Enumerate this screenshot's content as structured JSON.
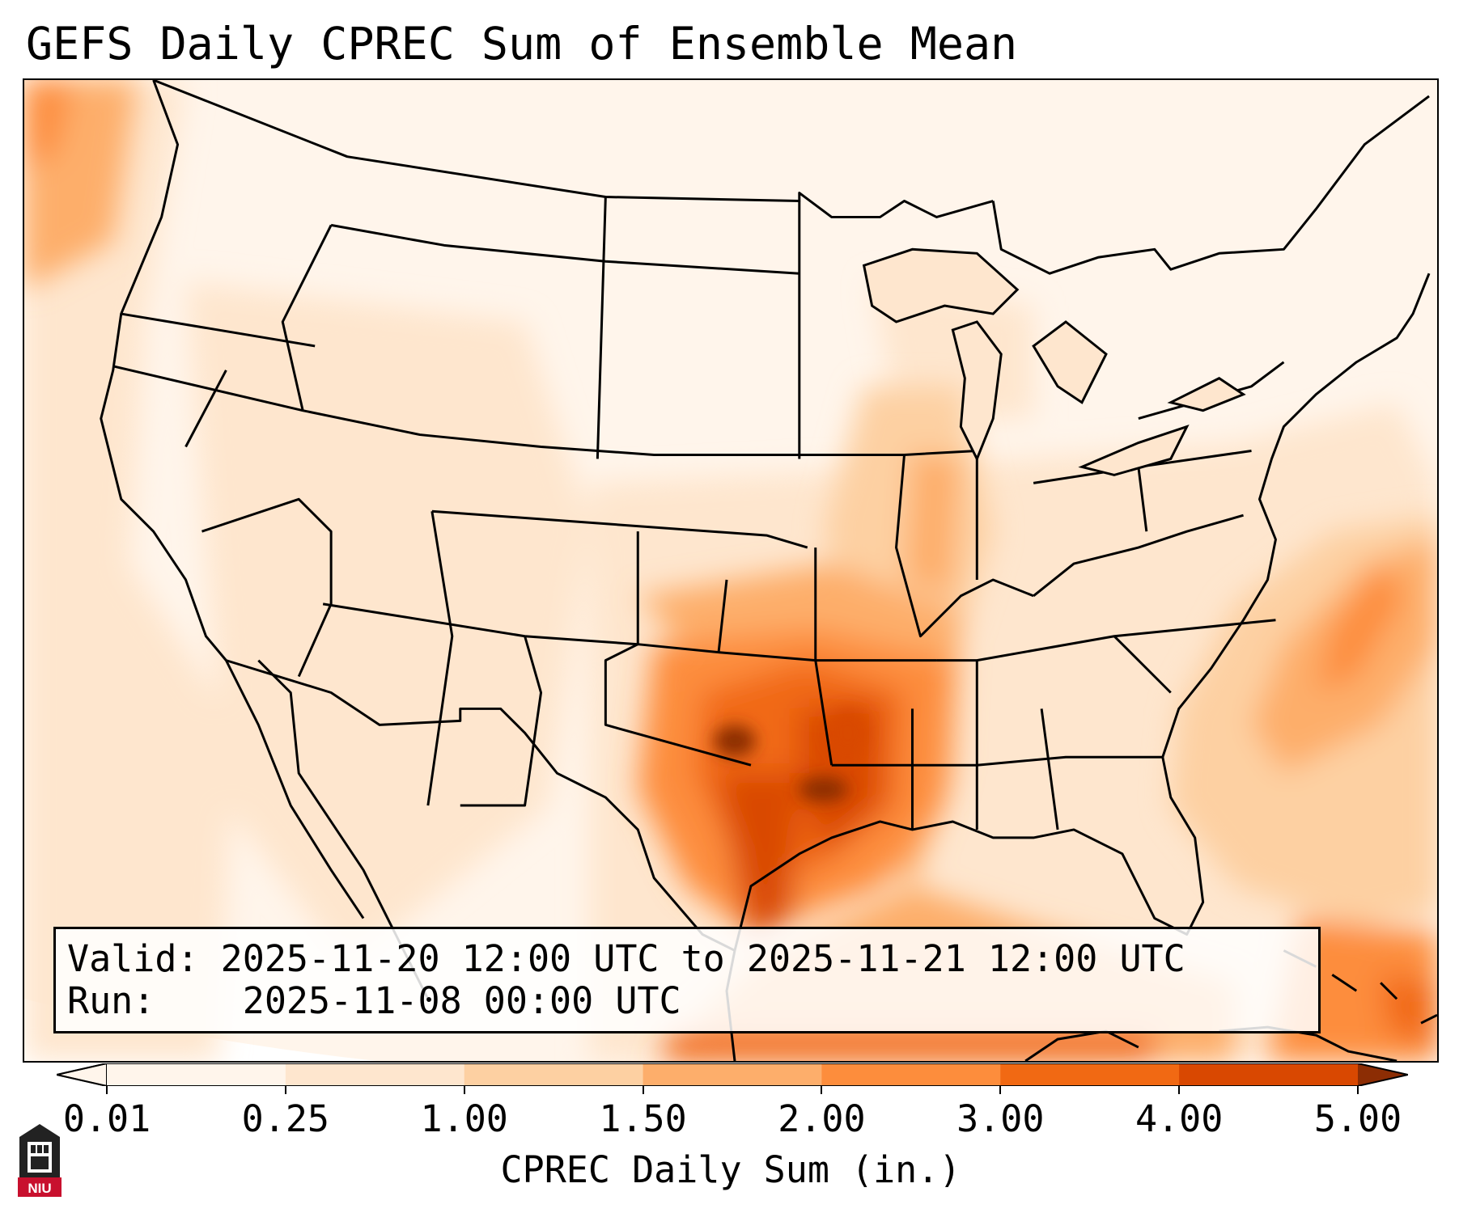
{
  "title": "GEFS Daily CPREC Sum of Ensemble Mean",
  "info": {
    "valid_label": "Valid:",
    "valid_value": "2025-11-20 12:00 UTC to 2025-11-21 12:00 UTC",
    "run_label": "Run:",
    "run_value": "2025-11-08 00:00 UTC"
  },
  "colorbar": {
    "label": "CPREC Daily Sum (in.)",
    "ticks": [
      "0.01",
      "0.25",
      "1.00",
      "1.50",
      "2.00",
      "3.00",
      "4.00",
      "5.00"
    ],
    "colors": [
      "#fff5eb",
      "#fee6ce",
      "#fdd0a2",
      "#fdae6b",
      "#fd8d3c",
      "#f16913",
      "#d94801",
      "#8c2d04"
    ],
    "extend": "both"
  },
  "logo": {
    "text": "NIU",
    "color": "#c8102e"
  },
  "map": {
    "projection": "Lambert conformal (CONUS)",
    "overlay": "state and country boundaries",
    "max_region": "Texas/Louisiana Gulf Coast and Arkansas"
  }
}
